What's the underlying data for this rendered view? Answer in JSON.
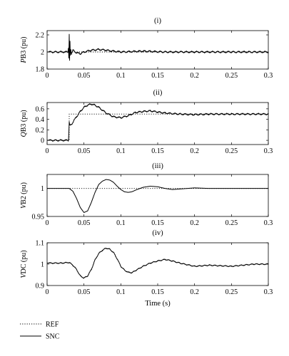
{
  "chart_data": [
    {
      "type": "line",
      "title": "(i)",
      "ylabel_italic": "P",
      "ylabel_rest": "B3 (pu)",
      "xlim": [
        0,
        0.3
      ],
      "ylim": [
        1.8,
        2.25
      ],
      "xticks": [
        "0",
        "0.05",
        "0.1",
        "0.15",
        "0.2",
        "0.25",
        "0.3"
      ],
      "yticks": [
        {
          "v": 1.8,
          "label": "1.8"
        },
        {
          "v": 2,
          "label": "2"
        },
        {
          "v": 2.2,
          "label": "2.2"
        }
      ],
      "series": [
        {
          "name": "REF",
          "style": "dotted",
          "x": [
            0,
            0.3
          ],
          "y": [
            2.0,
            2.0
          ]
        },
        {
          "name": "SNC",
          "style": "solid",
          "noise": 0.012,
          "x": [
            0,
            0.028,
            0.029,
            0.0295,
            0.03,
            0.0305,
            0.031,
            0.0315,
            0.032,
            0.033,
            0.035,
            0.04,
            0.045,
            0.05,
            0.06,
            0.07,
            0.08,
            0.1,
            0.13,
            0.16,
            0.2,
            0.25,
            0.3
          ],
          "y": [
            2.0,
            2.0,
            2.05,
            1.93,
            2.2,
            1.9,
            2.12,
            1.96,
            2.04,
            1.98,
            2.02,
            1.99,
            1.98,
            2.0,
            2.02,
            2.03,
            2.02,
            2.0,
            2.01,
            2.0,
            2.0,
            2.0,
            2.0
          ]
        }
      ]
    },
    {
      "type": "line",
      "title": "(ii)",
      "ylabel_italic": "Q",
      "ylabel_rest": "B3 (pu)",
      "xlim": [
        0,
        0.3
      ],
      "ylim": [
        -0.08,
        0.72
      ],
      "xticks": [
        "0",
        "0.05",
        "0.1",
        "0.15",
        "0.2",
        "0.25",
        "0.3"
      ],
      "yticks": [
        {
          "v": 0,
          "label": "0"
        },
        {
          "v": 0.2,
          "label": "0.2"
        },
        {
          "v": 0.4,
          "label": "0.4"
        },
        {
          "v": 0.6,
          "label": "0.6"
        }
      ],
      "series": [
        {
          "name": "REF",
          "style": "dotted",
          "x": [
            0,
            0.03,
            0.03,
            0.3
          ],
          "y": [
            0,
            0,
            0.5,
            0.5
          ]
        },
        {
          "name": "SNC",
          "style": "solid",
          "noise": 0.018,
          "x": [
            0,
            0.029,
            0.03,
            0.031,
            0.033,
            0.036,
            0.04,
            0.045,
            0.05,
            0.055,
            0.06,
            0.065,
            0.07,
            0.08,
            0.09,
            0.1,
            0.11,
            0.12,
            0.13,
            0.14,
            0.15,
            0.16,
            0.18,
            0.2,
            0.22,
            0.25,
            0.3
          ],
          "y": [
            0,
            0,
            0.35,
            0.28,
            0.3,
            0.37,
            0.45,
            0.55,
            0.63,
            0.67,
            0.69,
            0.67,
            0.63,
            0.52,
            0.45,
            0.43,
            0.47,
            0.53,
            0.55,
            0.56,
            0.54,
            0.52,
            0.5,
            0.49,
            0.5,
            0.5,
            0.5
          ]
        }
      ]
    },
    {
      "type": "line",
      "title": "(iii)",
      "ylabel_italic": "V",
      "ylabel_rest": "B2 (pu)",
      "xlim": [
        0,
        0.3
      ],
      "ylim": [
        0.95,
        1.025
      ],
      "xticks": [
        "0",
        "0.05",
        "0.1",
        "0.15",
        "0.2",
        "0.25",
        "0.3"
      ],
      "yticks": [
        {
          "v": 0.95,
          "label": "0.95"
        },
        {
          "v": 1,
          "label": "1"
        }
      ],
      "series": [
        {
          "name": "REF",
          "style": "dotted",
          "x": [
            0,
            0.3
          ],
          "y": [
            1.0,
            1.0
          ]
        },
        {
          "name": "SNC",
          "style": "solid",
          "noise": 0,
          "x": [
            0,
            0.03,
            0.035,
            0.04,
            0.045,
            0.05,
            0.055,
            0.06,
            0.065,
            0.07,
            0.075,
            0.08,
            0.085,
            0.09,
            0.095,
            0.1,
            0.105,
            0.11,
            0.115,
            0.12,
            0.13,
            0.14,
            0.15,
            0.16,
            0.17,
            0.18,
            0.2,
            0.22,
            0.25,
            0.3
          ],
          "y": [
            1.0,
            1.0,
            0.995,
            0.982,
            0.966,
            0.957,
            0.96,
            0.975,
            0.993,
            1.007,
            1.013,
            1.016,
            1.015,
            1.011,
            1.004,
            0.998,
            0.994,
            0.993,
            0.994,
            0.997,
            1.002,
            1.004,
            1.003,
            1.0,
            0.998,
            0.999,
            1.001,
            1.0,
            1.0,
            1.0
          ]
        }
      ]
    },
    {
      "type": "line",
      "title": "(iv)",
      "ylabel_italic": "V",
      "ylabel_rest": "DC (pu)",
      "xlabel": "Time (s)",
      "xlim": [
        0,
        0.3
      ],
      "ylim": [
        0.9,
        1.1
      ],
      "xticks": [
        "0",
        "0.05",
        "0.1",
        "0.15",
        "0.2",
        "0.25",
        "0.3"
      ],
      "yticks": [
        {
          "v": 0.9,
          "label": "0.9"
        },
        {
          "v": 1,
          "label": "1"
        },
        {
          "v": 1.1,
          "label": "1.1"
        }
      ],
      "series": [
        {
          "name": "SNC",
          "style": "solid",
          "noise": 0.003,
          "x": [
            0,
            0.02,
            0.03,
            0.035,
            0.04,
            0.045,
            0.05,
            0.055,
            0.06,
            0.065,
            0.07,
            0.075,
            0.08,
            0.085,
            0.09,
            0.095,
            0.1,
            0.105,
            0.11,
            0.115,
            0.12,
            0.13,
            0.14,
            0.15,
            0.16,
            0.17,
            0.18,
            0.2,
            0.22,
            0.25,
            0.28,
            0.3
          ],
          "y": [
            1.005,
            1.005,
            1.008,
            0.995,
            0.975,
            0.945,
            0.935,
            0.945,
            0.975,
            1.02,
            1.05,
            1.065,
            1.075,
            1.07,
            1.055,
            1.025,
            0.99,
            0.972,
            0.962,
            0.96,
            0.97,
            0.99,
            1.005,
            1.015,
            1.022,
            1.015,
            1.005,
            0.99,
            0.995,
            0.99,
            1.0,
            1.0
          ]
        }
      ]
    }
  ],
  "legend": [
    {
      "label": "REF",
      "style": "dotted"
    },
    {
      "label": "SNC",
      "style": "solid"
    }
  ]
}
